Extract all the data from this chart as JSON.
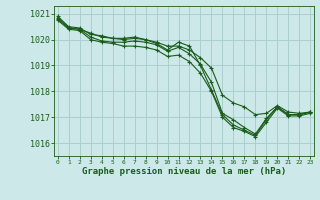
{
  "xlabel": "Graphe pression niveau de la mer (hPa)",
  "background_color": "#cce8e8",
  "grid_color": "#aacfcf",
  "line_color": "#1a5c1a",
  "x_ticks": [
    0,
    1,
    2,
    3,
    4,
    5,
    6,
    7,
    8,
    9,
    10,
    11,
    12,
    13,
    14,
    15,
    16,
    17,
    18,
    19,
    20,
    21,
    22,
    23
  ],
  "ylim": [
    1015.5,
    1021.3
  ],
  "y_ticks": [
    1016,
    1017,
    1018,
    1019,
    1020,
    1021
  ],
  "series": [
    [
      1020.9,
      1020.5,
      1020.45,
      1020.2,
      1020.15,
      1020.05,
      1020.05,
      1020.1,
      1020.0,
      1019.9,
      1019.75,
      1019.75,
      1019.6,
      1019.3,
      1018.9,
      1017.85,
      1017.55,
      1017.4,
      1017.1,
      1017.15,
      1017.45,
      1017.2,
      1017.15,
      1017.2
    ],
    [
      1020.85,
      1020.45,
      1020.4,
      1020.1,
      1019.95,
      1019.9,
      1019.9,
      1019.95,
      1019.9,
      1019.8,
      1019.55,
      1019.7,
      1019.45,
      1019.05,
      1018.35,
      1017.15,
      1016.9,
      1016.6,
      1016.35,
      1016.95,
      1017.4,
      1017.1,
      1017.1,
      1017.2
    ],
    [
      1020.8,
      1020.45,
      1020.4,
      1020.25,
      1020.1,
      1020.05,
      1020.0,
      1020.05,
      1020.0,
      1019.85,
      1019.6,
      1019.9,
      1019.75,
      1019.0,
      1018.05,
      1017.1,
      1016.7,
      1016.5,
      1016.3,
      1016.9,
      1017.4,
      1017.1,
      1017.1,
      1017.2
    ],
    [
      1020.75,
      1020.4,
      1020.35,
      1020.0,
      1019.9,
      1019.85,
      1019.75,
      1019.75,
      1019.7,
      1019.6,
      1019.35,
      1019.4,
      1019.15,
      1018.7,
      1018.0,
      1017.0,
      1016.6,
      1016.45,
      1016.25,
      1016.8,
      1017.35,
      1017.05,
      1017.05,
      1017.15
    ]
  ]
}
